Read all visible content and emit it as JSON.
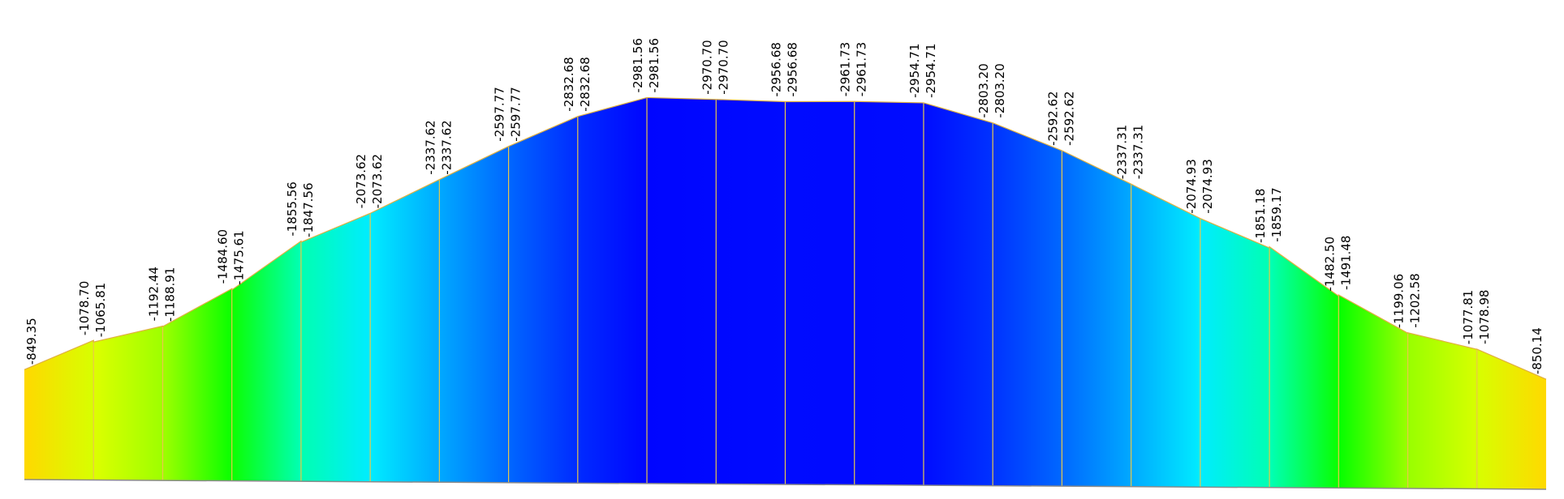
{
  "chart_data": {
    "type": "area",
    "title": "",
    "xlabel": "",
    "ylabel": "",
    "ylim": [
      -3000,
      0
    ],
    "grid": false,
    "legend": "none",
    "colors": {
      "label_default": "#000000",
      "label_extreme": "#ff0000",
      "member_line": "#e8c84a",
      "outline_top": "#e0b040",
      "baseline": "#8a8a8a"
    },
    "colormap": [
      "#ff0000",
      "#ff7f00",
      "#ffff00",
      "#00ff00",
      "#00ffff",
      "#0080ff",
      "#0000ff"
    ],
    "stations": [
      {
        "labels": [
          "-849.35",
          "-1078.70"
        ],
        "values": [
          -849.35,
          -1078.7
        ],
        "extreme": [
          true,
          false
        ]
      },
      {
        "labels": [
          "-1065.81",
          "-1192.44"
        ],
        "values": [
          -1065.81,
          -1192.44
        ],
        "extreme": [
          false,
          false
        ]
      },
      {
        "labels": [
          "-1188.91",
          "-1484.60"
        ],
        "values": [
          -1188.91,
          -1484.6
        ],
        "extreme": [
          false,
          false
        ]
      },
      {
        "labels": [
          "-1475.61",
          "-1855.56"
        ],
        "values": [
          -1475.61,
          -1855.56
        ],
        "extreme": [
          false,
          false
        ]
      },
      {
        "labels": [
          "-1847.56",
          "-2073.62"
        ],
        "values": [
          -1847.56,
          -2073.62
        ],
        "extreme": [
          false,
          false
        ]
      },
      {
        "labels": [
          "-2073.62",
          "-2337.62"
        ],
        "values": [
          -2073.62,
          -2337.62
        ],
        "extreme": [
          false,
          false
        ]
      },
      {
        "labels": [
          "-2337.62",
          "-2597.77"
        ],
        "values": [
          -2337.62,
          -2597.77
        ],
        "extreme": [
          false,
          false
        ]
      },
      {
        "labels": [
          "-2597.77",
          "-2832.68"
        ],
        "values": [
          -2597.77,
          -2832.68
        ],
        "extreme": [
          false,
          false
        ]
      },
      {
        "labels": [
          "-2832.68",
          "-2981.56"
        ],
        "values": [
          -2832.68,
          -2981.56
        ],
        "extreme": [
          false,
          true
        ]
      },
      {
        "labels": [
          "-2981.56",
          "-2970.70"
        ],
        "values": [
          -2981.56,
          -2970.7
        ],
        "extreme": [
          false,
          false
        ]
      },
      {
        "labels": [
          "-2970.70",
          "-2956.68"
        ],
        "values": [
          -2970.7,
          -2956.68
        ],
        "extreme": [
          false,
          false
        ]
      },
      {
        "labels": [
          "-2956.68",
          "-2961.73"
        ],
        "values": [
          -2956.68,
          -2961.73
        ],
        "extreme": [
          false,
          false
        ]
      },
      {
        "labels": [
          "-2961.73",
          "-2954.71"
        ],
        "values": [
          -2961.73,
          -2954.71
        ],
        "extreme": [
          false,
          false
        ]
      },
      {
        "labels": [
          "-2954.71",
          "-2803.20"
        ],
        "values": [
          -2954.71,
          -2803.2
        ],
        "extreme": [
          false,
          false
        ]
      },
      {
        "labels": [
          "-2803.20",
          "-2592.62"
        ],
        "values": [
          -2803.2,
          -2592.62
        ],
        "extreme": [
          false,
          false
        ]
      },
      {
        "labels": [
          "-2592.62",
          "-2337.31"
        ],
        "values": [
          -2592.62,
          -2337.31
        ],
        "extreme": [
          false,
          false
        ]
      },
      {
        "labels": [
          "-2337.31",
          "-2074.93"
        ],
        "values": [
          -2337.31,
          -2074.93
        ],
        "extreme": [
          false,
          false
        ]
      },
      {
        "labels": [
          "-2074.93",
          "-1851.18"
        ],
        "values": [
          -2074.93,
          -1851.18
        ],
        "extreme": [
          false,
          false
        ]
      },
      {
        "labels": [
          "-1859.17",
          "-1482.50"
        ],
        "values": [
          -1859.17,
          -1482.5
        ],
        "extreme": [
          false,
          false
        ]
      },
      {
        "labels": [
          "-1491.48",
          "-1199.06"
        ],
        "values": [
          -1491.48,
          -1199.06
        ],
        "extreme": [
          false,
          false
        ]
      },
      {
        "labels": [
          "-1202.58",
          "-1077.81"
        ],
        "values": [
          -1202.58,
          -1077.81
        ],
        "extreme": [
          false,
          false
        ]
      },
      {
        "labels": [
          "-1078.98",
          "-850.14"
        ],
        "values": [
          -1078.98,
          -850.14
        ],
        "extreme": [
          false,
          false
        ]
      }
    ]
  }
}
